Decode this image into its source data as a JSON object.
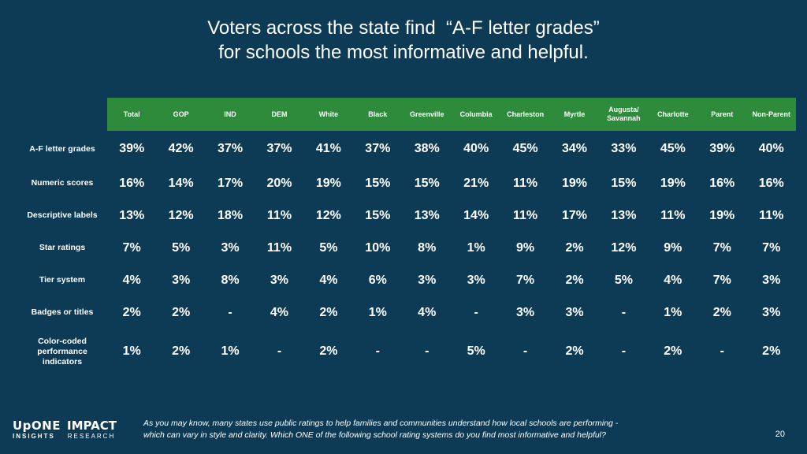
{
  "title": {
    "line1": "Voters across the state find  “A-F letter grades”",
    "line2": "for schools the most informative and helpful."
  },
  "chart_data": {
    "type": "table",
    "columns": [
      "Total",
      "GOP",
      "IND",
      "DEM",
      "White",
      "Black",
      "Greenville",
      "Columbia",
      "Charleston",
      "Myrtle",
      "Augusta/ Savannah",
      "Charlotte",
      "Parent",
      "Non-Parent"
    ],
    "rows": [
      {
        "label": "A-F letter grades",
        "values": [
          "39%",
          "42%",
          "37%",
          "37%",
          "41%",
          "37%",
          "38%",
          "40%",
          "45%",
          "34%",
          "33%",
          "45%",
          "39%",
          "40%"
        ]
      },
      {
        "label": "Numeric scores",
        "values": [
          "16%",
          "14%",
          "17%",
          "20%",
          "19%",
          "15%",
          "15%",
          "21%",
          "11%",
          "19%",
          "15%",
          "19%",
          "16%",
          "16%"
        ]
      },
      {
        "label": "Descriptive labels",
        "values": [
          "13%",
          "12%",
          "18%",
          "11%",
          "12%",
          "15%",
          "13%",
          "14%",
          "11%",
          "17%",
          "13%",
          "11%",
          "19%",
          "11%"
        ]
      },
      {
        "label": "Star ratings",
        "values": [
          "7%",
          "5%",
          "3%",
          "11%",
          "5%",
          "10%",
          "8%",
          "1%",
          "9%",
          "2%",
          "12%",
          "9%",
          "7%",
          "7%"
        ]
      },
      {
        "label": "Tier system",
        "values": [
          "4%",
          "3%",
          "8%",
          "3%",
          "4%",
          "6%",
          "3%",
          "3%",
          "7%",
          "2%",
          "5%",
          "4%",
          "7%",
          "3%"
        ]
      },
      {
        "label": "Badges or titles",
        "values": [
          "2%",
          "2%",
          "-",
          "4%",
          "2%",
          "1%",
          "4%",
          "-",
          "3%",
          "3%",
          "-",
          "1%",
          "2%",
          "3%"
        ]
      },
      {
        "label": "Color-coded performance indicators",
        "values": [
          "1%",
          "2%",
          "1%",
          "-",
          "2%",
          "-",
          "-",
          "5%",
          "-",
          "2%",
          "-",
          "2%",
          "-",
          "2%"
        ]
      }
    ]
  },
  "footer": {
    "logo_upone": "UpONE",
    "logo_insights": "INSIGHTS",
    "logo_impact": "IMPACT",
    "logo_research": "RESEARCH",
    "note_line1": "As you may know, many states use public ratings to help families and communities understand how local schools are performing -",
    "note_line2": "which can vary in style and clarity. Which ONE of the following school rating systems do you find most informative and helpful?",
    "page_number": "20"
  },
  "colors": {
    "background": "#0d3b55",
    "header_fill": "#2e8b3c",
    "text": "#ffffff"
  }
}
